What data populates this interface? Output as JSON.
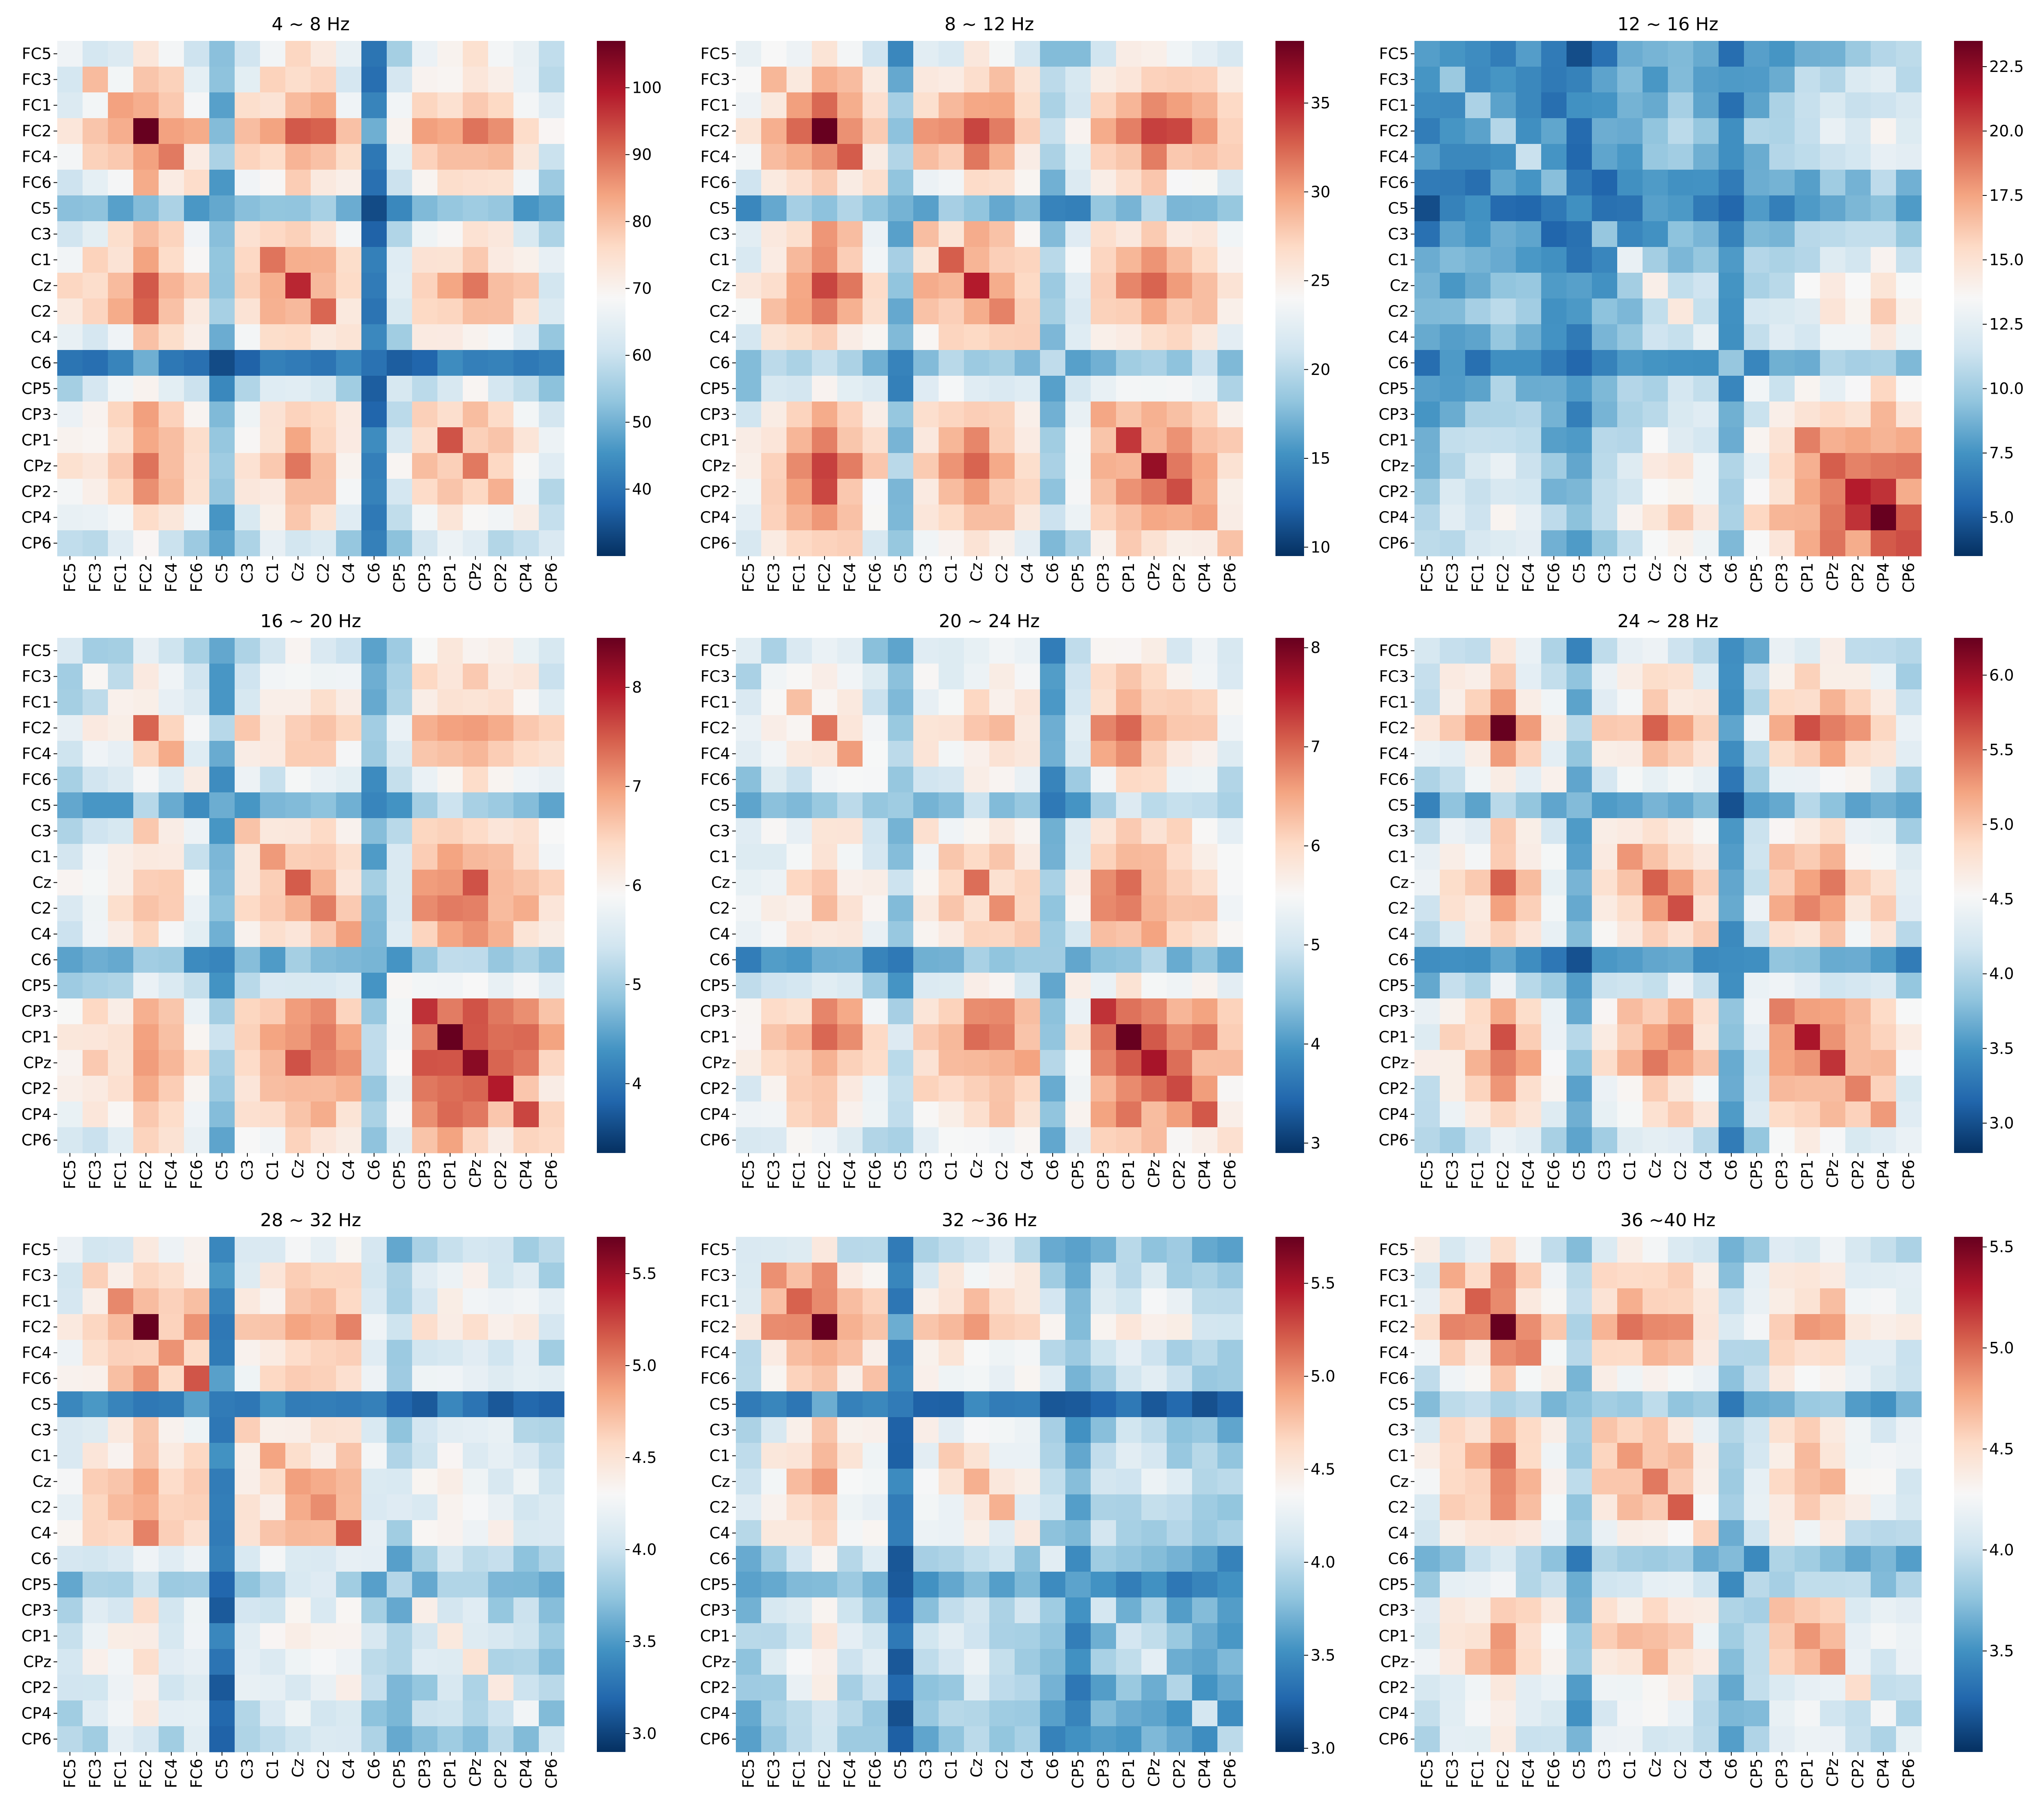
{
  "chart_data": [
    {
      "type": "heatmap",
      "title": "4 ~ 8 Hz",
      "labels": [
        "FC5",
        "FC3",
        "FC1",
        "FC2",
        "FC4",
        "FC6",
        "C5",
        "C3",
        "C1",
        "Cz",
        "C2",
        "C4",
        "C6",
        "CP5",
        "CP3",
        "CP1",
        "CPz",
        "CP2",
        "CP4",
        "CP6"
      ],
      "colorscale": "RdBu_r",
      "colorbar": {
        "range": [
          30,
          107
        ],
        "ticks": [
          40,
          50,
          60,
          70,
          80,
          90,
          100
        ]
      },
      "peak_cell": [
        "FC2",
        "FC2"
      ]
    },
    {
      "type": "heatmap",
      "title": "8 ~ 12 Hz",
      "labels": [
        "FC5",
        "FC3",
        "FC1",
        "FC2",
        "FC4",
        "FC6",
        "C5",
        "C3",
        "C1",
        "Cz",
        "C2",
        "C4",
        "C6",
        "CP5",
        "CP3",
        "CP1",
        "CPz",
        "CP2",
        "CP4",
        "CP6"
      ],
      "colorscale": "RdBu_r",
      "colorbar": {
        "range": [
          9.5,
          38.5
        ],
        "ticks": [
          10,
          15,
          20,
          25,
          30,
          35
        ]
      },
      "peak_cell": [
        "FC2",
        "FC2"
      ]
    },
    {
      "type": "heatmap",
      "title": "12 ~ 16 Hz",
      "labels": [
        "FC5",
        "FC3",
        "FC1",
        "FC2",
        "FC4",
        "FC6",
        "C5",
        "C3",
        "C1",
        "Cz",
        "C2",
        "C4",
        "C6",
        "CP5",
        "CP3",
        "CP1",
        "CPz",
        "CP2",
        "CP4",
        "CP6"
      ],
      "colorscale": "RdBu_r",
      "colorbar": {
        "range": [
          3.5,
          23.5
        ],
        "ticks": [
          5.0,
          7.5,
          10.0,
          12.5,
          15.0,
          17.5,
          20.0,
          22.5
        ]
      },
      "peak_cell": [
        "CP4",
        "CP4"
      ]
    },
    {
      "type": "heatmap",
      "title": "16 ~ 20 Hz",
      "labels": [
        "FC5",
        "FC3",
        "FC1",
        "FC2",
        "FC4",
        "FC6",
        "C5",
        "C3",
        "C1",
        "Cz",
        "C2",
        "C4",
        "C6",
        "CP5",
        "CP3",
        "CP1",
        "CPz",
        "CP2",
        "CP4",
        "CP6"
      ],
      "colorscale": "RdBu_r",
      "colorbar": {
        "range": [
          3.3,
          8.5
        ],
        "ticks": [
          4,
          5,
          6,
          7,
          8
        ]
      },
      "peak_cell": [
        "CP1",
        "CP1"
      ]
    },
    {
      "type": "heatmap",
      "title": "20 ~ 24 Hz",
      "labels": [
        "FC5",
        "FC3",
        "FC1",
        "FC2",
        "FC4",
        "FC6",
        "C5",
        "C3",
        "C1",
        "Cz",
        "C2",
        "C4",
        "C6",
        "CP5",
        "CP3",
        "CP1",
        "CPz",
        "CP2",
        "CP4",
        "CP6"
      ],
      "colorscale": "RdBu_r",
      "colorbar": {
        "range": [
          2.9,
          8.1
        ],
        "ticks": [
          3,
          4,
          5,
          6,
          7,
          8
        ]
      },
      "peak_cell": [
        "CP1",
        "CP1"
      ]
    },
    {
      "type": "heatmap",
      "title": "24 ~ 28 Hz",
      "labels": [
        "FC5",
        "FC3",
        "FC1",
        "FC2",
        "FC4",
        "FC6",
        "C5",
        "C3",
        "C1",
        "Cz",
        "C2",
        "C4",
        "C6",
        "CP5",
        "CP3",
        "CP1",
        "CPz",
        "CP2",
        "CP4",
        "CP6"
      ],
      "colorscale": "RdBu_r",
      "colorbar": {
        "range": [
          2.8,
          6.25
        ],
        "ticks": [
          3.0,
          3.5,
          4.0,
          4.5,
          5.0,
          5.5,
          6.0
        ]
      },
      "peak_cell": [
        "FC2",
        "FC2"
      ]
    },
    {
      "type": "heatmap",
      "title": "28 ~ 32 Hz",
      "labels": [
        "FC5",
        "FC3",
        "FC1",
        "FC2",
        "FC4",
        "FC6",
        "C5",
        "C3",
        "C1",
        "Cz",
        "C2",
        "C4",
        "C6",
        "CP5",
        "CP3",
        "CP1",
        "CPz",
        "CP2",
        "CP4",
        "CP6"
      ],
      "colorscale": "RdBu_r",
      "colorbar": {
        "range": [
          2.9,
          5.7
        ],
        "ticks": [
          3.0,
          3.5,
          4.0,
          4.5,
          5.0,
          5.5
        ]
      },
      "peak_cell": [
        "FC2",
        "FC2"
      ]
    },
    {
      "type": "heatmap",
      "title": "32 ~36 Hz",
      "labels": [
        "FC5",
        "FC3",
        "FC1",
        "FC2",
        "FC4",
        "FC6",
        "C5",
        "C3",
        "C1",
        "Cz",
        "C2",
        "C4",
        "C6",
        "CP5",
        "CP3",
        "CP1",
        "CPz",
        "CP2",
        "CP4",
        "CP6"
      ],
      "colorscale": "RdBu_r",
      "colorbar": {
        "range": [
          2.98,
          5.75
        ],
        "ticks": [
          3.0,
          3.5,
          4.0,
          4.5,
          5.0,
          5.5
        ]
      },
      "peak_cell": [
        "FC2",
        "FC2"
      ]
    },
    {
      "type": "heatmap",
      "title": "36 ~40 Hz",
      "labels": [
        "FC5",
        "FC3",
        "FC1",
        "FC2",
        "FC4",
        "FC6",
        "C5",
        "C3",
        "C1",
        "Cz",
        "C2",
        "C4",
        "C6",
        "CP5",
        "CP3",
        "CP1",
        "CPz",
        "CP2",
        "CP4",
        "CP6"
      ],
      "colorscale": "RdBu_r",
      "colorbar": {
        "range": [
          3.0,
          5.55
        ],
        "ticks": [
          3.5,
          4.0,
          4.5,
          5.0,
          5.5
        ]
      },
      "peak_cell": [
        "FC2",
        "FC2"
      ]
    }
  ]
}
